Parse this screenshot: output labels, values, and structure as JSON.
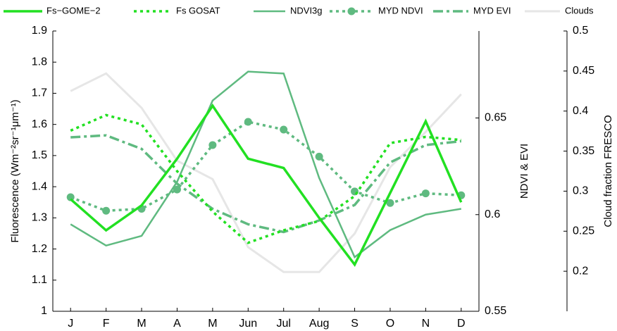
{
  "chart_data": {
    "type": "line",
    "ylabel": "Fluorescence (Wm⁻²sr⁻¹μm⁻¹)",
    "y2label": "NDVI & EVI",
    "y3label": "Cloud fraction FRESCO",
    "categories": [
      "J",
      "F",
      "M",
      "A",
      "M",
      "Jun",
      "Jul",
      "Aug",
      "S",
      "O",
      "N",
      "D"
    ],
    "ylim": [
      1,
      1.9
    ],
    "yticks": [
      1,
      1.1,
      1.2,
      1.3,
      1.4,
      1.5,
      1.6,
      1.7,
      1.8,
      1.9
    ],
    "y2lim": [
      0.55,
      0.695
    ],
    "y2ticks": [
      0.55,
      0.6,
      0.65
    ],
    "y3lim": [
      0.15,
      0.5
    ],
    "y3ticks": [
      0.2,
      0.25,
      0.3,
      0.35,
      0.4,
      0.45,
      0.5
    ],
    "legend": "top",
    "series": [
      {
        "name": "Fs−GOME−2",
        "color": "#22e022",
        "style": "solid",
        "width": 3.5,
        "axis": "y",
        "values": [
          1.36,
          1.26,
          1.34,
          1.49,
          1.66,
          1.49,
          1.46,
          1.3,
          1.15,
          1.38,
          1.61,
          1.35
        ]
      },
      {
        "name": "Fs GOSAT",
        "color": "#22e022",
        "style": "dotted",
        "width": 3.5,
        "axis": "y",
        "values": [
          1.58,
          1.63,
          1.6,
          1.45,
          1.32,
          1.22,
          1.26,
          1.29,
          1.37,
          1.54,
          1.56,
          1.55
        ]
      },
      {
        "name": "NDVI3g",
        "color": "#5fba80",
        "style": "solid",
        "width": 2.5,
        "axis": "y2",
        "values": [
          0.595,
          0.584,
          0.589,
          0.617,
          0.659,
          0.674,
          0.673,
          0.619,
          0.578,
          0.592,
          0.6,
          0.603
        ]
      },
      {
        "name": "MYD NDVI",
        "color": "#5fba80",
        "style": "dotted",
        "marker": "circle",
        "width": 3.5,
        "axis": "y2",
        "values": [
          0.609,
          0.602,
          0.603,
          0.613,
          0.636,
          0.648,
          0.644,
          0.63,
          0.612,
          0.606,
          0.611,
          0.61
        ]
      },
      {
        "name": "MYD EVI",
        "color": "#5fba80",
        "style": "dashdot",
        "width": 3.5,
        "axis": "y2",
        "values": [
          0.64,
          0.641,
          0.634,
          0.616,
          0.603,
          0.595,
          0.591,
          0.597,
          0.605,
          0.627,
          0.636,
          0.638
        ]
      },
      {
        "name": "Clouds",
        "color": "#e6e6e6",
        "style": "solid",
        "width": 3,
        "axis": "y3",
        "values": [
          0.425,
          0.447,
          0.404,
          0.338,
          0.315,
          0.23,
          0.199,
          0.199,
          0.247,
          0.33,
          0.374,
          0.421
        ]
      }
    ]
  }
}
